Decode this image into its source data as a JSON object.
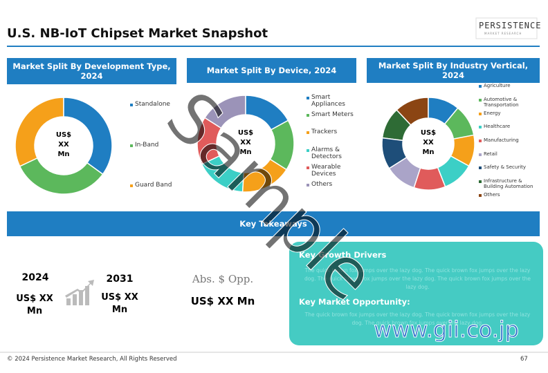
{
  "title": "U.S. NB-IoT Chipset Market Snapshot",
  "logo": {
    "name": "PERSISTENCE",
    "tagline": "MARKET RESEARCH"
  },
  "chart_data": [
    {
      "type": "pie",
      "title": "Market Split By Development Type, 2024",
      "center_label": "US$ XX Mn",
      "categories": [
        "Standalone",
        "In-Band",
        "Guard Band"
      ],
      "values": [
        35,
        33,
        32
      ],
      "colors": [
        "#1f7ec2",
        "#5cb85c",
        "#f5a01a"
      ]
    },
    {
      "type": "pie",
      "title": "Market Split By Device, 2024",
      "center_label": "US$ XX Mn",
      "categories": [
        "Smart Appliances",
        "Smart Meters",
        "Trackers",
        "Alarms & Detectors",
        "Wearable Devices",
        "Others"
      ],
      "values": [
        17,
        17,
        17,
        17,
        16,
        16
      ],
      "colors": [
        "#1f7ec2",
        "#5cb85c",
        "#f5a01a",
        "#3ccfc6",
        "#e05b5b",
        "#9b93b8"
      ]
    },
    {
      "type": "pie",
      "title": "Market Split By Industry Vertical, 2024",
      "center_label": "US$ XX Mn",
      "categories": [
        "Agriculture",
        "Automotive & Transportation",
        "Energy",
        "Healthcare",
        "Manufacturing",
        "Retail",
        "Safety & Security",
        "Infrastructure & Building Automation",
        "Others"
      ],
      "values": [
        11,
        11,
        11,
        11,
        11,
        11,
        11,
        11,
        12
      ],
      "colors": [
        "#1f7ec2",
        "#5cb85c",
        "#f5a01a",
        "#3ccfc6",
        "#e05b5b",
        "#aaa4c8",
        "#1e4e79",
        "#2e6b35",
        "#8b4513"
      ]
    }
  ],
  "takeaways": {
    "title": "Key Takeaways",
    "year_start": "2024",
    "value_start": "US$ XX Mn",
    "year_end": "2031",
    "value_end": "US$ XX Mn",
    "opp_label": "Abs. $ Opp.",
    "opp_value": "US$ XX Mn",
    "drivers_title": "Key Growth Drivers",
    "drivers_text": "The quick brown fox jumps over the lazy dog. The quick brown fox jumps over the lazy dog. The quick brown fox jumps over the lazy dog. The quick brown fox jumps over the lazy dog.",
    "opportunity_title": "Key Market Opportunity:",
    "opportunity_text": "The quick brown fox jumps over the lazy dog. The quick brown fox jumps over the lazy dog. The quick brown fox jumps over the lazy dog."
  },
  "footer": {
    "copyright": "© 2024 Persistence Market Research, All Rights Reserved",
    "page": "67"
  },
  "watermarks": {
    "sample": "Sample",
    "site": "www.gii.co.jp"
  }
}
